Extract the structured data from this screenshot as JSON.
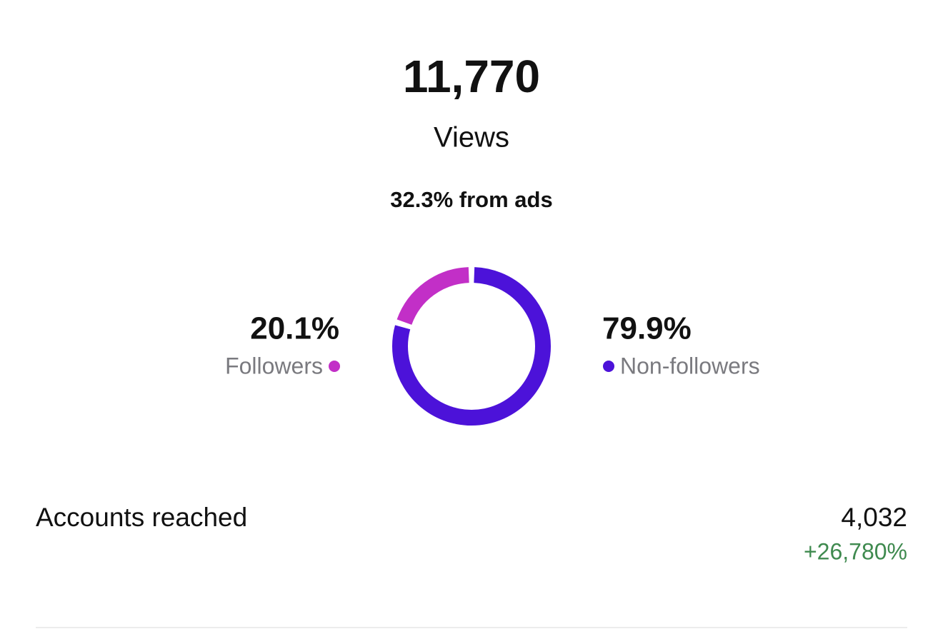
{
  "header": {
    "views": "11,770",
    "views_label": "Views",
    "ads_note": "32.3% from ads"
  },
  "chart_data": {
    "type": "donut",
    "categories": [
      "Followers",
      "Non-followers"
    ],
    "values": [
      20.1,
      79.9
    ],
    "value_labels": [
      "20.1%",
      "79.9%"
    ],
    "colors": [
      "#c22fc7",
      "#4c12d9"
    ]
  },
  "metric": {
    "label": "Accounts reached",
    "value": "4,032",
    "change": "+26,780%"
  }
}
